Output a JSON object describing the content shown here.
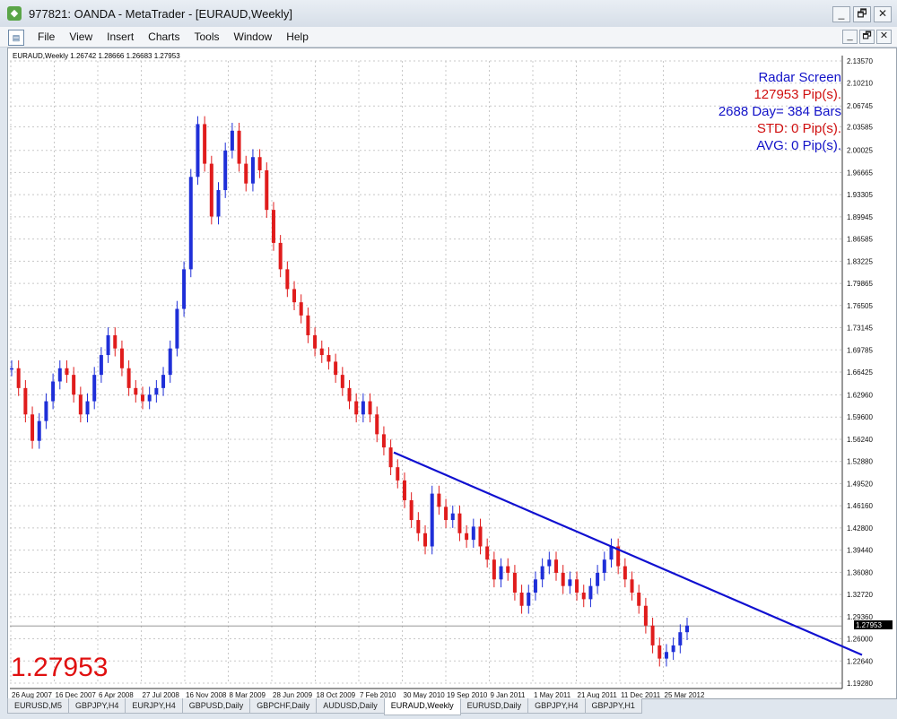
{
  "window": {
    "title": "977821: OANDA - MetaTrader - [EURAUD,Weekly]",
    "controls": [
      "_",
      "🗗",
      "✕"
    ]
  },
  "menu": {
    "items": [
      "File",
      "View",
      "Insert",
      "Charts",
      "Tools",
      "Window",
      "Help"
    ],
    "controls": [
      "_",
      "🗗",
      "✕"
    ]
  },
  "chart": {
    "header": "EURAUD,Weekly  1.26742 1.28666 1.26683 1.27953",
    "big_price": "1.27953",
    "current_price_label": "1.27953",
    "radar": {
      "title": "Radar Screen",
      "pips": "127953 Pip(s).",
      "bars": "2688 Day= 384 Bars",
      "std": "STD: 0 Pip(s).",
      "avg": "AVG: 0 Pip(s)."
    },
    "colors": {
      "bull": "#1f2fd8",
      "bear": "#e01c1c",
      "trendline": "#1010d0",
      "big_price": "#e01010",
      "radar_blue": "#1212c8",
      "radar_red": "#d01010"
    }
  },
  "chart_data": {
    "type": "line",
    "title": "",
    "xlabel": "",
    "ylabel": "",
    "y_ticks": [
      "2.13570",
      "2.10210",
      "2.06745",
      "2.03585",
      "2.00025",
      "1.96665",
      "1.93305",
      "1.89945",
      "1.86585",
      "1.83225",
      "1.79865",
      "1.76505",
      "1.73145",
      "1.69785",
      "1.66425",
      "1.62960",
      "1.59600",
      "1.56240",
      "1.52880",
      "1.49520",
      "1.46160",
      "1.42800",
      "1.39440",
      "1.36080",
      "1.32720",
      "1.29360",
      "1.26000",
      "1.22640",
      "1.19280"
    ],
    "x_ticks": [
      "26 Aug 2007",
      "16 Dec 2007",
      "6 Apr 2008",
      "27 Jul 2008",
      "16 Nov 2008",
      "8 Mar 2009",
      "28 Jun 2009",
      "18 Oct 2009",
      "7 Feb 2010",
      "30 May 2010",
      "19 Sep 2010",
      "9 Jan 2011",
      "1 May 2011",
      "21 Aug 2011",
      "11 Dec 2011",
      "25 Mar 2012"
    ],
    "ylim": [
      1.1928,
      2.1357
    ],
    "grid": true,
    "series": [
      {
        "values": [
          1.67,
          1.64,
          1.6,
          1.56,
          1.59,
          1.62,
          1.65,
          1.67,
          1.66,
          1.63,
          1.6,
          1.62,
          1.66,
          1.69,
          1.72,
          1.7,
          1.67,
          1.64,
          1.63,
          1.62,
          1.63,
          1.64,
          1.66,
          1.7,
          1.76,
          1.82,
          1.96,
          2.04,
          1.98,
          1.9,
          1.94,
          2.0,
          2.03,
          1.98,
          1.95,
          1.99,
          1.97,
          1.91,
          1.86,
          1.82,
          1.79,
          1.77,
          1.75,
          1.72,
          1.7,
          1.69,
          1.68,
          1.66,
          1.64,
          1.62,
          1.6,
          1.62,
          1.6,
          1.57,
          1.55,
          1.52,
          1.5,
          1.47,
          1.44,
          1.42,
          1.4,
          1.48,
          1.46,
          1.44,
          1.45,
          1.42,
          1.41,
          1.43,
          1.4,
          1.38,
          1.35,
          1.37,
          1.36,
          1.33,
          1.31,
          1.33,
          1.35,
          1.37,
          1.38,
          1.36,
          1.34,
          1.35,
          1.33,
          1.32,
          1.34,
          1.36,
          1.38,
          1.4,
          1.37,
          1.35,
          1.33,
          1.31,
          1.28,
          1.25,
          1.23,
          1.24,
          1.25,
          1.27,
          1.28
        ]
      },
      {
        "name": "",
        "x": [
          "7 Feb 2010",
          "16 Jun 2012"
        ],
        "values": [
          1.5424,
          1.2356
        ]
      }
    ]
  }
}
